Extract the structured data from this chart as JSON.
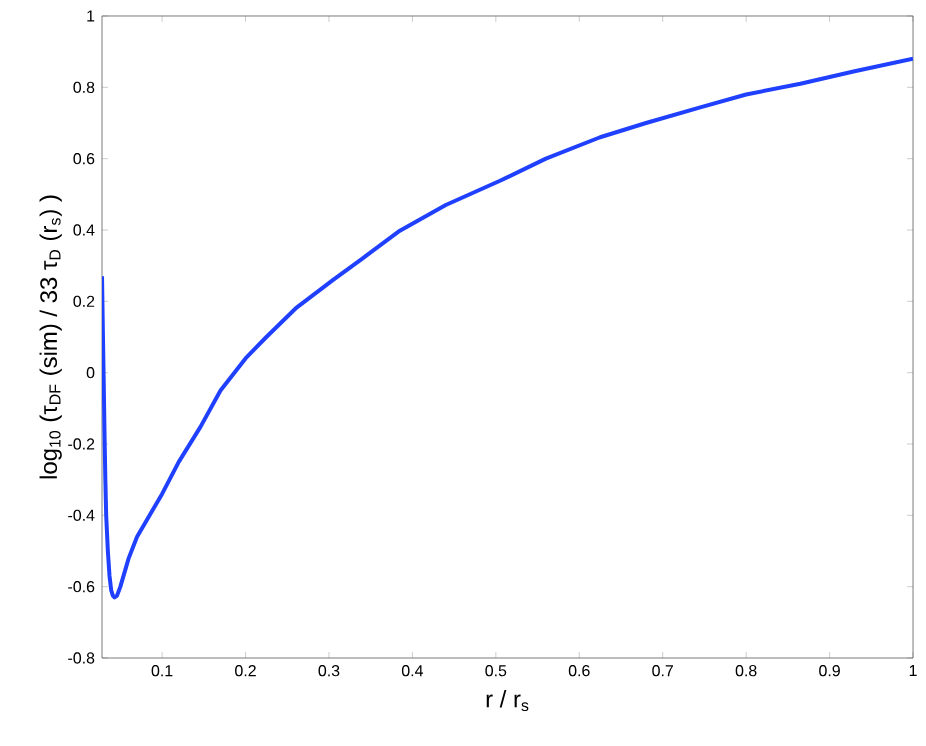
{
  "chart_data": {
    "type": "line",
    "xlabel": "r / r$_{s}$",
    "ylabel": "log$_{10}$ (τ$_{DF}$ (sim) / 33 τ$_{D}$ (r$_{s}$) )",
    "x": [
      0.028,
      0.029,
      0.03,
      0.031,
      0.032,
      0.033,
      0.035,
      0.037,
      0.039,
      0.041,
      0.043,
      0.046,
      0.05,
      0.055,
      0.06,
      0.07,
      0.08,
      0.09,
      0.1,
      0.12,
      0.146,
      0.17,
      0.2,
      0.225,
      0.26,
      0.305,
      0.34,
      0.385,
      0.44,
      0.505,
      0.56,
      0.625,
      0.68,
      0.745,
      0.8,
      0.865,
      0.93,
      1.0
    ],
    "series": [
      {
        "color": "#2040ff",
        "values": [
          0.27,
          0.12,
          -0.02,
          -0.17,
          -0.3,
          -0.4,
          -0.5,
          -0.57,
          -0.61,
          -0.625,
          -0.63,
          -0.625,
          -0.6,
          -0.56,
          -0.52,
          -0.46,
          -0.42,
          -0.38,
          -0.34,
          -0.25,
          -0.152,
          -0.05,
          0.04,
          0.1,
          0.18,
          0.26,
          0.32,
          0.398,
          0.47,
          0.538,
          0.6,
          0.66,
          0.7,
          0.744,
          0.78,
          0.81,
          0.845,
          0.88
        ]
      }
    ],
    "xlim": [
      0.028,
      1
    ],
    "ylim": [
      -0.8,
      1
    ],
    "xticks": [
      0.1,
      0.2,
      0.3,
      0.4,
      0.5,
      0.6,
      0.7,
      0.8,
      0.9,
      1
    ],
    "yticks": [
      -0.8,
      -0.6,
      -0.4,
      -0.2,
      0,
      0.2,
      0.4,
      0.6,
      0.8,
      1
    ],
    "grid": false,
    "marker": "none",
    "line_style": "solid"
  }
}
